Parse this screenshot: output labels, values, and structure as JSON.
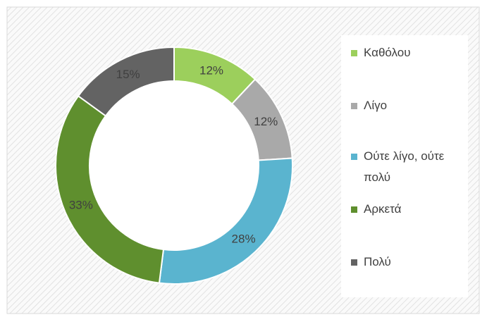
{
  "chart_data": {
    "type": "donut",
    "categories": [
      "Καθόλου",
      "Λίγο",
      "Ούτε λίγο, ούτε πολύ",
      "Αρκετά",
      "Πολύ"
    ],
    "values": [
      12,
      12,
      28,
      33,
      15
    ],
    "value_labels": [
      "12%",
      "12%",
      "28%",
      "33%",
      "15%"
    ],
    "colors": [
      "#9ccf5c",
      "#a9a9a9",
      "#5ab4cf",
      "#5f8f2e",
      "#636363"
    ],
    "legend": "right"
  }
}
